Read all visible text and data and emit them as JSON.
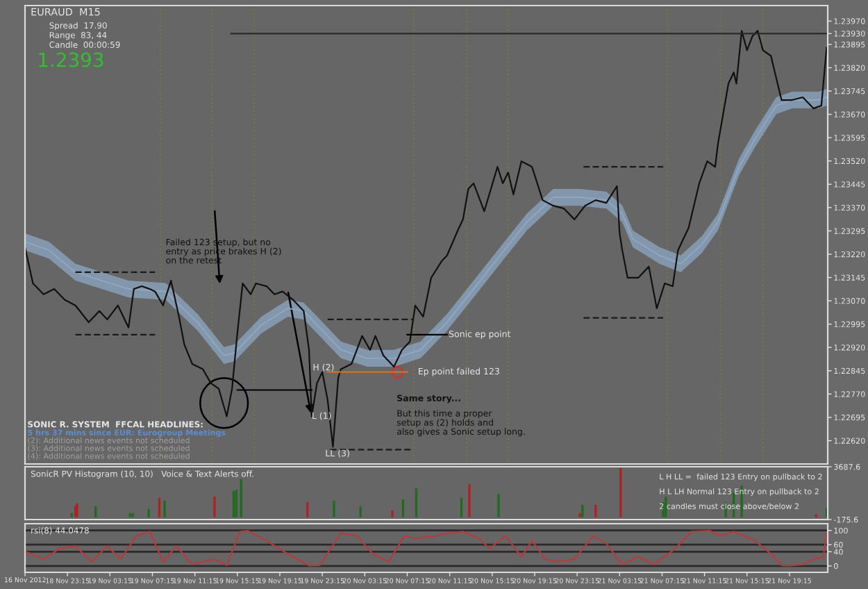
{
  "chart_data": [
    {
      "type": "line",
      "title": "EURAUD  M15",
      "xlim": [
        "2012-11-18T19:15",
        "2012-11-21T22:51"
      ],
      "ylim": [
        1.22545,
        1.2402
      ],
      "tick_labels": "y",
      "yticks": [
        {
          "value": 1.2262,
          "label": "1.22620"
        },
        {
          "value": 1.22695,
          "label": "1.22695"
        },
        {
          "value": 1.2277,
          "label": "1.22770"
        },
        {
          "value": 1.22845,
          "label": "1.22845"
        },
        {
          "value": 1.2292,
          "label": "1.22920"
        },
        {
          "value": 1.22995,
          "label": "1.22995"
        },
        {
          "value": 1.2307,
          "label": "1.23070"
        },
        {
          "value": 1.23145,
          "label": "1.23145"
        },
        {
          "value": 1.2322,
          "label": "1.23220"
        },
        {
          "value": 1.23295,
          "label": "1.23295"
        },
        {
          "value": 1.2337,
          "label": "1.23370"
        },
        {
          "value": 1.23445,
          "label": "1.23445"
        },
        {
          "value": 1.2352,
          "label": "1.23520"
        },
        {
          "value": 1.23595,
          "label": "1.23595"
        },
        {
          "value": 1.2367,
          "label": "1.23670"
        },
        {
          "value": 1.23745,
          "label": "1.23745"
        },
        {
          "value": 1.2382,
          "label": "1.23820"
        },
        {
          "value": 1.23895,
          "label": "1.23895"
        },
        {
          "value": 1.2393,
          "label": "1.23930"
        },
        {
          "value": 1.2397,
          "label": "1.23970"
        }
      ],
      "ref_lines": [
        {
          "axis": "x",
          "value": "2012-11-19T08:00",
          "color": "#7a7a3a",
          "line_style": "dotted"
        },
        {
          "axis": "x",
          "value": "2012-11-19T12:51",
          "color": "#7a7a3a",
          "line_style": "dotted"
        },
        {
          "axis": "x",
          "value": "2012-11-19T16:51",
          "color": "#7a7a3a",
          "line_style": "dotted"
        },
        {
          "axis": "x",
          "value": "2012-11-20T07:51",
          "color": "#7a7a3a",
          "line_style": "dotted"
        },
        {
          "axis": "x",
          "value": "2012-11-20T12:51",
          "color": "#7a7a3a",
          "line_style": "dotted"
        },
        {
          "axis": "x",
          "value": "2012-11-20T16:45",
          "color": "#7a7a3a",
          "line_style": "dotted"
        },
        {
          "axis": "x",
          "value": "2012-11-21T07:45",
          "color": "#7a7a3a",
          "line_style": "dotted"
        },
        {
          "axis": "x",
          "value": "2012-11-21T12:45",
          "color": "#7a7a3a",
          "line_style": "dotted"
        },
        {
          "axis": "x",
          "value": "2012-11-21T16:45",
          "color": "#7a7a3a",
          "line_style": "dotted"
        }
      ],
      "series": [
        {
          "color": "#8ea8c4",
          "x": [
            "2012-11-18T19:15",
            "2012-11-18T21:30",
            "2012-11-19T00:00",
            "2012-11-19T05:00",
            "2012-11-19T08:30",
            "2012-11-19T11:30",
            "2012-11-19T14:00",
            "2012-11-19T15:00",
            "2012-11-19T17:30",
            "2012-11-19T20:00",
            "2012-11-19T21:30",
            "2012-11-19T23:00",
            "2012-11-20T01:00",
            "2012-11-20T03:30",
            "2012-11-20T06:00",
            "2012-11-20T08:30",
            "2012-11-20T11:00",
            "2012-11-20T13:30",
            "2012-11-20T16:00",
            "2012-11-20T18:30",
            "2012-11-20T21:00",
            "2012-11-20T23:30",
            "2012-11-21T02:00",
            "2012-11-21T03:30",
            "2012-11-21T04:30",
            "2012-11-21T07:00",
            "2012-11-21T09:00",
            "2012-11-21T11:00",
            "2012-11-21T12:30",
            "2012-11-21T14:30",
            "2012-11-21T16:00",
            "2012-11-21T18:00",
            "2012-11-21T19:30",
            "2012-11-21T22:00",
            "2012-11-21T22:45"
          ],
          "values": [
            1.2326,
            1.23233,
            1.23162,
            1.23108,
            1.231,
            1.23001,
            1.22894,
            1.22903,
            1.22992,
            1.23046,
            1.23037,
            1.22984,
            1.22912,
            1.22885,
            1.22885,
            1.22912,
            1.23001,
            1.23108,
            1.23216,
            1.23323,
            1.23403,
            1.23403,
            1.23394,
            1.2335,
            1.23269,
            1.23216,
            1.23189,
            1.23251,
            1.23323,
            1.23501,
            1.23591,
            1.23698,
            1.23716,
            1.23716,
            1.23725
          ],
          "lower": [
            1.23233,
            1.23206,
            1.23135,
            1.23081,
            1.23073,
            1.22974,
            1.22867,
            1.22876,
            1.22965,
            1.23019,
            1.2301,
            1.22957,
            1.22885,
            1.22858,
            1.22858,
            1.22885,
            1.22974,
            1.23081,
            1.23189,
            1.23296,
            1.23376,
            1.23376,
            1.23367,
            1.23323,
            1.23242,
            1.23189,
            1.23162,
            1.23224,
            1.23296,
            1.23474,
            1.23564,
            1.23671,
            1.23689,
            1.23689,
            1.23698
          ],
          "upper": [
            1.23287,
            1.2326,
            1.23189,
            1.23135,
            1.23127,
            1.23028,
            1.22921,
            1.2293,
            1.23019,
            1.23073,
            1.23064,
            1.23011,
            1.22939,
            1.22912,
            1.22912,
            1.22939,
            1.23028,
            1.23135,
            1.23243,
            1.2335,
            1.2343,
            1.2343,
            1.23421,
            1.23377,
            1.23296,
            1.23243,
            1.23216,
            1.23278,
            1.2335,
            1.23528,
            1.23618,
            1.23725,
            1.23743,
            1.23743,
            1.23752
          ]
        },
        {
          "color": "#111111",
          "x": [
            "2012-11-18T19:15",
            "2012-11-18T20:00",
            "2012-11-18T21:00",
            "2012-11-18T22:00",
            "2012-11-18T23:00",
            "2012-11-19T00:00",
            "2012-11-19T01:15",
            "2012-11-19T02:15",
            "2012-11-19T03:00",
            "2012-11-19T04:00",
            "2012-11-19T05:00",
            "2012-11-19T05:30",
            "2012-11-19T06:15",
            "2012-11-19T07:00",
            "2012-11-19T07:30",
            "2012-11-19T08:15",
            "2012-11-19T09:00",
            "2012-11-19T09:45",
            "2012-11-19T10:15",
            "2012-11-19T11:00",
            "2012-11-19T12:00",
            "2012-11-19T12:45",
            "2012-11-19T13:30",
            "2012-11-19T14:15",
            "2012-11-19T14:45",
            "2012-11-19T15:15",
            "2012-11-19T15:45",
            "2012-11-19T16:30",
            "2012-11-19T17:00",
            "2012-11-19T18:00",
            "2012-11-19T18:45",
            "2012-11-19T19:30",
            "2012-11-19T20:30",
            "2012-11-19T21:30",
            "2012-11-19T22:00",
            "2012-11-19T22:15",
            "2012-11-19T22:45",
            "2012-11-19T23:15",
            "2012-11-19T23:45",
            "2012-11-20T00:15",
            "2012-11-20T00:45",
            "2012-11-20T01:00",
            "2012-11-20T02:00",
            "2012-11-20T03:00",
            "2012-11-20T03:45",
            "2012-11-20T04:15",
            "2012-11-20T05:00",
            "2012-11-20T06:00",
            "2012-11-20T06:45",
            "2012-11-20T07:30",
            "2012-11-20T08:00",
            "2012-11-20T08:45",
            "2012-11-20T09:30",
            "2012-11-20T10:30",
            "2012-11-20T11:00",
            "2012-11-20T12:00",
            "2012-11-20T12:30",
            "2012-11-20T13:00",
            "2012-11-20T13:30",
            "2012-11-20T14:30",
            "2012-11-20T15:45",
            "2012-11-20T16:15",
            "2012-11-20T16:45",
            "2012-11-20T17:15",
            "2012-11-20T18:00",
            "2012-11-20T19:00",
            "2012-11-20T20:00",
            "2012-11-20T21:00",
            "2012-11-20T22:00",
            "2012-11-20T23:00",
            "2012-11-21T00:00",
            "2012-11-21T01:00",
            "2012-11-21T02:00",
            "2012-11-21T03:00",
            "2012-11-21T03:15",
            "2012-11-21T03:30",
            "2012-11-21T04:00",
            "2012-11-21T05:00",
            "2012-11-21T06:00",
            "2012-11-21T06:45",
            "2012-11-21T07:30",
            "2012-11-21T08:15",
            "2012-11-21T08:45",
            "2012-11-21T09:30",
            "2012-11-21T09:45",
            "2012-11-21T10:45",
            "2012-11-21T11:30",
            "2012-11-21T12:15",
            "2012-11-21T12:30",
            "2012-11-21T13:30",
            "2012-11-21T14:00",
            "2012-11-21T14:15",
            "2012-11-21T14:45",
            "2012-11-21T15:15",
            "2012-11-21T15:45",
            "2012-11-21T16:15",
            "2012-11-21T16:45",
            "2012-11-21T17:30",
            "2012-11-21T18:00",
            "2012-11-21T18:30",
            "2012-11-21T19:30",
            "2012-11-21T20:30",
            "2012-11-21T21:30",
            "2012-11-21T22:15",
            "2012-11-21T22:45"
          ],
          "values": [
            1.23242,
            1.23126,
            1.23091,
            1.23108,
            1.23073,
            1.23055,
            1.23001,
            1.23037,
            1.2301,
            1.23055,
            1.22984,
            1.23108,
            1.23117,
            1.23108,
            1.231,
            1.23055,
            1.23135,
            1.23019,
            1.2293,
            1.22867,
            1.2285,
            1.22805,
            1.22787,
            1.22698,
            1.22787,
            1.22966,
            1.23126,
            1.23091,
            1.23126,
            1.23117,
            1.23091,
            1.231,
            1.23073,
            1.23037,
            1.22912,
            1.22698,
            1.22805,
            1.22841,
            1.22751,
            1.226,
            1.22823,
            1.2285,
            1.22867,
            1.22957,
            1.22912,
            1.22957,
            1.22894,
            1.22858,
            1.22912,
            1.22939,
            1.23055,
            1.23019,
            1.23144,
            1.23198,
            1.23216,
            1.23296,
            1.23332,
            1.2343,
            1.23448,
            1.23358,
            1.23501,
            1.23448,
            1.23483,
            1.23412,
            1.23519,
            1.23501,
            1.23394,
            1.23376,
            1.23367,
            1.23332,
            1.23376,
            1.23394,
            1.23385,
            1.23439,
            1.23287,
            1.23233,
            1.23144,
            1.23144,
            1.2318,
            1.23046,
            1.23126,
            1.23117,
            1.23233,
            1.23287,
            1.23305,
            1.23448,
            1.23519,
            1.23501,
            1.23573,
            1.23769,
            1.23805,
            1.23769,
            1.23939,
            1.23876,
            1.23921,
            1.23939,
            1.23876,
            1.23858,
            1.23787,
            1.23716,
            1.23716,
            1.23725,
            1.23689,
            1.23698,
            1.23885
          ]
        },
        {
          "color": "#2b2b2b",
          "x": [
            "2012-11-19T14:39",
            "2012-11-21T22:45"
          ],
          "values": [
            1.2393,
            1.2393
          ]
        },
        {
          "color": "#1a1a1a",
          "line_style": "dashed",
          "x": [
            "2012-11-19T00:00",
            "2012-11-19T07:30"
          ],
          "values": [
            1.23162,
            1.23162
          ]
        },
        {
          "color": "#1a1a1a",
          "line_style": "dashed",
          "x": [
            "2012-11-19T00:00",
            "2012-11-19T07:30"
          ],
          "values": [
            1.22961,
            1.22961
          ]
        },
        {
          "color": "#1a1a1a",
          "line_style": "dashed",
          "x": [
            "2012-11-19T23:45",
            "2012-11-20T07:51"
          ],
          "values": [
            1.2301,
            1.2301
          ]
        },
        {
          "color": "#1a1a1a",
          "line_style": "dashed",
          "x": [
            "2012-11-20T00:00",
            "2012-11-20T07:51"
          ],
          "values": [
            1.22591,
            1.22591
          ]
        },
        {
          "color": "#1a1a1a",
          "line_style": "dashed",
          "x": [
            "2012-11-20T23:51",
            "2012-11-21T07:21"
          ],
          "values": [
            1.23015,
            1.23015
          ]
        },
        {
          "color": "#1a1a1a",
          "line_style": "dashed",
          "x": [
            "2012-11-20T23:51",
            "2012-11-21T07:21"
          ],
          "values": [
            1.23501,
            1.23501
          ]
        },
        {
          "color": "#000000",
          "x": [
            "2012-11-20T07:15",
            "2012-11-20T11:00"
          ],
          "values": [
            1.22961,
            1.22961
          ]
        },
        {
          "color": "#d07030",
          "x": [
            "2012-11-19T23:45",
            "2012-11-20T07:15"
          ],
          "values": [
            1.22841,
            1.22841
          ]
        },
        {
          "color": "#000000",
          "x": [
            "2012-11-19T15:15",
            "2012-11-19T22:15"
          ],
          "values": [
            1.22783,
            1.22783
          ]
        }
      ],
      "annotations": [
        "Spread  17.90",
        "Range  83, 44",
        "Candle  00:00:59",
        "1.2393",
        "SONIC R. SYSTEM  FFCAL HEADLINES:",
        "5 hrs 37 mins since EUR: Eurogroup Meetings",
        "(2): Additional news events not scheduled",
        "(3): Additional news events not scheduled",
        "(4): Additional news events not scheduled",
        "LL (3)",
        "Same story...",
        "But this time a proper\nsetup as (2) holds and\nalso gives a Sonic setup long.",
        {
          "text": "Failed 123 setup, but no\nentry as price brakes H (2)\non the retest",
          "x": "2012-11-19T08:30",
          "y": 1.2327
        },
        {
          "text": "H (2)",
          "x": "2012-11-19T22:21",
          "y": 1.22854
        },
        {
          "text": "L (1)",
          "x": "2012-11-19T22:15",
          "y": 1.22698
        },
        {
          "text": "Sonic ep point",
          "x": "2012-11-20T11:09",
          "y": 1.22961
        },
        {
          "text": "Ep point failed 123",
          "x": "2012-11-20T08:15",
          "y": 1.22841
        }
      ]
    },
    {
      "type": "bar",
      "title": "SonicR PV Histogram (10, 10)   Voice & Text Alerts off.",
      "xlim": [
        "2012-11-18T19:15",
        "2012-11-21T22:51"
      ],
      "ylim": [
        -175.6,
        3687.6
      ],
      "tick_labels": "y",
      "yticks": [
        {
          "value": -175.6,
          "label": "-175.6"
        },
        {
          "value": 3687.6,
          "label": "3687.6"
        }
      ],
      "x": [
        "2012-11-18T23:39",
        "2012-11-19T00:00",
        "2012-11-19T00:09",
        "2012-11-19T01:54",
        "2012-11-19T05:09",
        "2012-11-19T05:24",
        "2012-11-19T06:54",
        "2012-11-19T07:54",
        "2012-11-19T08:24",
        "2012-11-19T13:06",
        "2012-11-19T14:54",
        "2012-11-19T15:09",
        "2012-11-19T15:36",
        "2012-11-19T21:51",
        "2012-11-20T00:21",
        "2012-11-20T02:51",
        "2012-11-20T05:51",
        "2012-11-20T06:51",
        "2012-11-20T08:06",
        "2012-11-20T12:21",
        "2012-11-20T13:06",
        "2012-11-20T15:51",
        "2012-11-20T23:30",
        "2012-11-20T23:45",
        "2012-11-21T01:00",
        "2012-11-21T03:21",
        "2012-11-21T07:21",
        "2012-11-21T07:36",
        "2012-11-21T13:15",
        "2012-11-21T14:00",
        "2012-11-21T14:45",
        "2012-11-21T21:45",
        "2012-11-21T22:45"
      ],
      "values": [
        300,
        800,
        1000,
        800,
        300,
        300,
        600,
        1400,
        1200,
        1500,
        1900,
        2000,
        2800,
        1100,
        1200,
        800,
        500,
        1300,
        2100,
        1400,
        2400,
        1700,
        300,
        900,
        900,
        3600,
        1100,
        1500,
        1100,
        1800,
        2300,
        200,
        700
      ],
      "colors": [
        "#1f6a1f",
        "#b02020",
        "#b02020",
        "#1f6a1f",
        "#1f6a1f",
        "#1f6a1f",
        "#1f6a1f",
        "#b02020",
        "#1f6a1f",
        "#b02020",
        "#1f6a1f",
        "#1f6a1f",
        "#1f6a1f",
        "#b02020",
        "#1f6a1f",
        "#1f6a1f",
        "#b02020",
        "#1f6a1f",
        "#1f6a1f",
        "#1f6a1f",
        "#b02020",
        "#1f6a1f",
        "#b02020",
        "#1f6a1f",
        "#b02020",
        "#b02020",
        "#1f6a1f",
        "#1f6a1f",
        "#1f6a1f",
        "#1f6a1f",
        "#1f6a1f",
        "#b02020",
        "#1f6a1f"
      ],
      "annotations": [
        "L H LL =  failed 123 Entry on pullback to 2",
        "H L LH Normal 123 Entry on pullback to 2",
        "2 candles must close above/below 2"
      ]
    },
    {
      "type": "line",
      "title": "rsi(8) 44.0478",
      "xlim": [
        "2012-11-18T19:15",
        "2012-11-21T22:51"
      ],
      "ylim": [
        -18,
        119
      ],
      "yticks": [
        100,
        60,
        40,
        0
      ],
      "grid": "y",
      "annotations": [
        "16 Nov 2012"
      ],
      "xticks": [
        {
          "value": "2012-11-18T19:15",
          "label": null
        },
        {
          "value": "2012-11-18T23:15",
          "label": "18 Nov 23:15"
        },
        {
          "value": "2012-11-19T03:15",
          "label": "19 Nov 03:15"
        },
        {
          "value": "2012-11-19T07:15",
          "label": "19 Nov 07:15"
        },
        {
          "value": "2012-11-19T11:15",
          "label": "19 Nov 11:15"
        },
        {
          "value": "2012-11-19T15:15",
          "label": "19 Nov 15:15"
        },
        {
          "value": "2012-11-19T19:15",
          "label": "19 Nov 19:15"
        },
        {
          "value": "2012-11-19T23:15",
          "label": "19 Nov 23:15"
        },
        {
          "value": "2012-11-20T03:15",
          "label": "20 Nov 03:15"
        },
        {
          "value": "2012-11-20T07:15",
          "label": "20 Nov 07:15"
        },
        {
          "value": "2012-11-20T11:15",
          "label": "20 Nov 11:15"
        },
        {
          "value": "2012-11-20T15:15",
          "label": "20 Nov 15:15"
        },
        {
          "value": "2012-11-20T19:15",
          "label": "20 Nov 19:15"
        },
        {
          "value": "2012-11-20T23:15",
          "label": "20 Nov 23:15"
        },
        {
          "value": "2012-11-21T03:15",
          "label": "21 Nov 03:15"
        },
        {
          "value": "2012-11-21T07:15",
          "label": "21 Nov 07:15"
        },
        {
          "value": "2012-11-21T11:15",
          "label": "21 Nov 11:15"
        },
        {
          "value": "2012-11-21T15:15",
          "label": "21 Nov 15:15"
        },
        {
          "value": "2012-11-21T19:15",
          "label": "21 Nov 19:15"
        }
      ],
      "series": [
        {
          "color": "#b83a3a",
          "x": [
            "2012-11-18T19:15",
            "2012-11-18T21:00",
            "2012-11-18T22:30",
            "2012-11-19T00:00",
            "2012-11-19T01:30",
            "2012-11-19T03:00",
            "2012-11-19T04:15",
            "2012-11-19T05:45",
            "2012-11-19T07:00",
            "2012-11-19T08:15",
            "2012-11-19T09:30",
            "2012-11-19T11:00",
            "2012-11-19T13:00",
            "2012-11-19T14:15",
            "2012-11-19T15:30",
            "2012-11-19T16:15",
            "2012-11-19T18:00",
            "2012-11-19T20:00",
            "2012-11-19T22:00",
            "2012-11-19T23:00",
            "2012-11-20T01:00",
            "2012-11-20T02:30",
            "2012-11-20T04:00",
            "2012-11-20T05:30",
            "2012-11-20T07:00",
            "2012-11-20T08:00",
            "2012-11-20T10:00",
            "2012-11-20T11:00",
            "2012-11-20T12:30",
            "2012-11-20T14:00",
            "2012-11-20T15:00",
            "2012-11-20T16:30",
            "2012-11-20T18:00",
            "2012-11-20T19:00",
            "2012-11-20T20:15",
            "2012-11-20T21:30",
            "2012-11-20T23:00",
            "2012-11-21T00:45",
            "2012-11-21T02:00",
            "2012-11-21T03:30",
            "2012-11-21T05:00",
            "2012-11-21T06:30",
            "2012-11-21T08:30",
            "2012-11-21T10:00",
            "2012-11-21T11:45",
            "2012-11-21T12:45",
            "2012-11-21T14:00",
            "2012-11-21T16:00",
            "2012-11-21T17:30",
            "2012-11-21T18:30",
            "2012-11-21T19:15",
            "2012-11-21T20:30",
            "2012-11-21T21:30",
            "2012-11-21T22:27",
            "2012-11-21T22:45"
          ],
          "values": [
            41,
            19,
            49,
            56,
            12,
            56,
            19,
            85,
            97,
            12,
            56,
            4,
            19,
            2,
            97,
            99,
            71,
            34,
            1,
            2,
            93,
            85,
            34,
            12,
            85,
            78,
            85,
            93,
            97,
            78,
            49,
            85,
            26,
            71,
            19,
            12,
            19,
            85,
            63,
            4,
            26,
            4,
            49,
            97,
            99,
            85,
            97,
            71,
            34,
            2,
            1,
            4,
            19,
            26,
            93
          ]
        }
      ]
    }
  ]
}
